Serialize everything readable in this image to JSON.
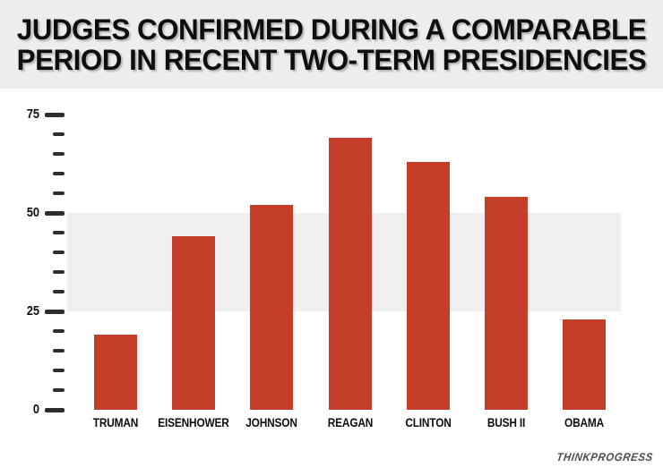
{
  "title": {
    "line1": "JUDGES CONFIRMED DURING A COMPARABLE",
    "line2": "PERIOD IN RECENT TWO-TERM PRESIDENCIES"
  },
  "branding": {
    "logo_text": "THINKPROGRESS"
  },
  "colors": {
    "bar": "#c53e29",
    "highlight_band": "#efefef",
    "header_background": "#ededed",
    "tick": "#2d2d2d",
    "title_text": "#0e0e0e",
    "logo_text": "#4d4d4d"
  },
  "chart_data": {
    "type": "bar",
    "title": "JUDGES CONFIRMED DURING A COMPARABLE PERIOD IN RECENT TWO-TERM PRESIDENCIES",
    "categories": [
      "TRUMAN",
      "EISENHOWER",
      "JOHNSON",
      "REAGAN",
      "CLINTON",
      "BUSH II",
      "OBAMA"
    ],
    "values": [
      19,
      44,
      52,
      69,
      63,
      54,
      23
    ],
    "xlabel": "",
    "ylabel": "",
    "ylim": [
      0,
      75
    ],
    "ytick_labeled": [
      0,
      25,
      50,
      75
    ],
    "ytick_minor_step": 5,
    "highlight_band": {
      "from": 25,
      "to": 50
    },
    "grid": false,
    "legend": false,
    "bar_color": "#c53e29"
  }
}
